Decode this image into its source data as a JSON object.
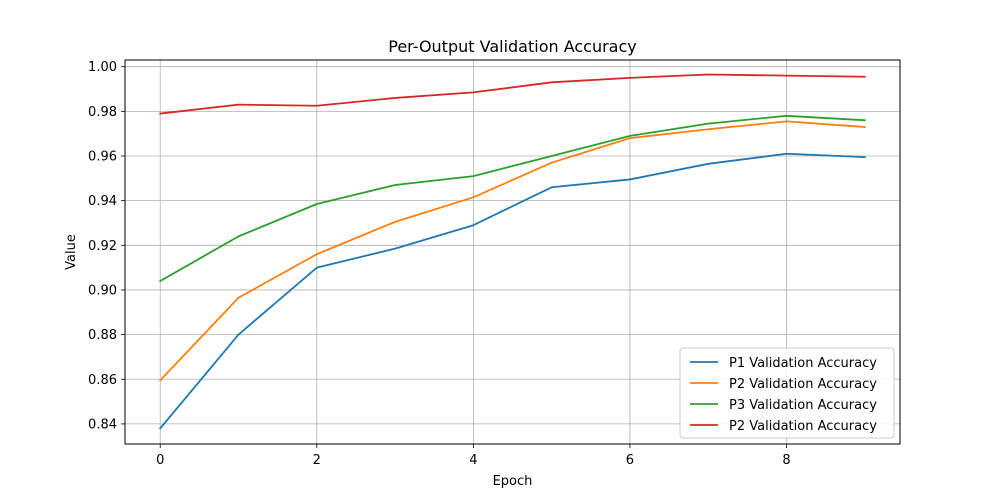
{
  "chart_data": {
    "type": "line",
    "title": "Per-Output Validation Accuracy",
    "xlabel": "Epoch",
    "ylabel": "Value",
    "x": [
      0,
      1,
      2,
      3,
      4,
      5,
      6,
      7,
      8,
      9
    ],
    "xlim": [
      -0.45,
      9.45
    ],
    "ylim": [
      0.831,
      1.003
    ],
    "xticks": [
      0,
      2,
      4,
      6,
      8
    ],
    "yticks": [
      0.84,
      0.86,
      0.88,
      0.9,
      0.92,
      0.94,
      0.96,
      0.98,
      1.0
    ],
    "ytick_labels": [
      "0.84",
      "0.86",
      "0.88",
      "0.90",
      "0.92",
      "0.94",
      "0.96",
      "0.98",
      "1.00"
    ],
    "grid": true,
    "legend_position": "lower-right",
    "series": [
      {
        "name": "P1 Validation Accuracy",
        "color": "#1f77b4",
        "values": [
          0.838,
          0.88,
          0.91,
          0.9185,
          0.929,
          0.946,
          0.9495,
          0.9565,
          0.961,
          0.9595
        ]
      },
      {
        "name": "P2 Validation Accuracy",
        "color": "#ff7f0e",
        "values": [
          0.8595,
          0.8965,
          0.916,
          0.9305,
          0.9415,
          0.957,
          0.968,
          0.972,
          0.9755,
          0.973
        ]
      },
      {
        "name": "P3 Validation Accuracy",
        "color": "#2ca02c",
        "values": [
          0.904,
          0.924,
          0.9385,
          0.947,
          0.951,
          0.96,
          0.969,
          0.9745,
          0.978,
          0.976
        ]
      },
      {
        "name": "P2 Validation Accuracy",
        "color": "#d62728",
        "values": [
          0.979,
          0.983,
          0.9825,
          0.986,
          0.9885,
          0.993,
          0.995,
          0.9965,
          0.996,
          0.9955
        ]
      }
    ]
  }
}
